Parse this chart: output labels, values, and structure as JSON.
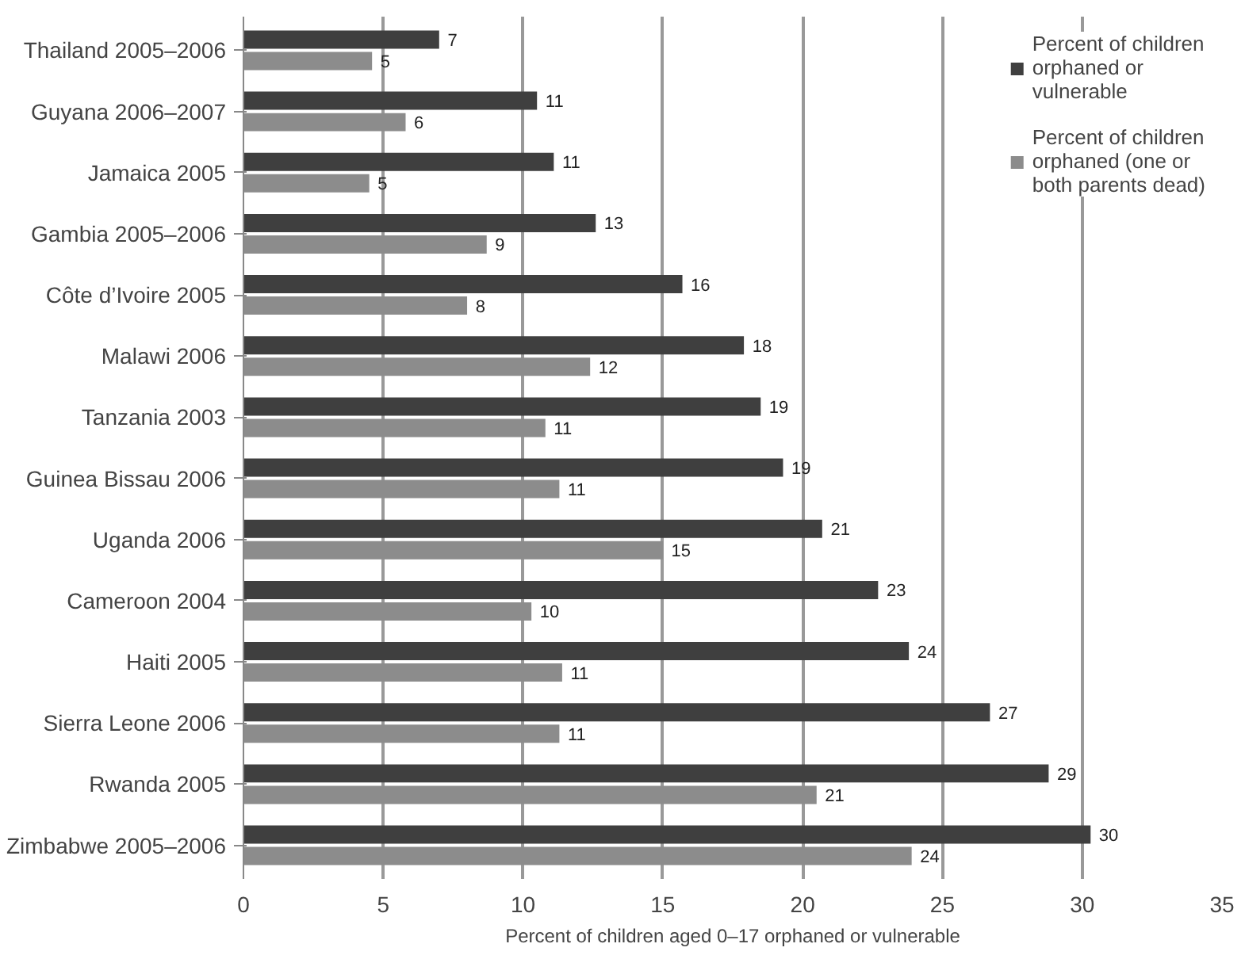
{
  "chart_data": {
    "type": "bar",
    "orientation": "horizontal",
    "xlabel": "Percent of children aged 0–17 orphaned or vulnerable",
    "categories": [
      "Thailand 2005–2006",
      "Guyana 2006–2007",
      "Jamaica 2005",
      "Gambia 2005–2006",
      "Côte d’Ivoire 2005",
      "Malawi 2006",
      "Tanzania 2003",
      "Guinea Bissau 2006",
      "Uganda 2006",
      "Cameroon 2004",
      "Haiti 2005",
      "Sierra Leone 2006",
      "Rwanda 2005",
      "Zimbabwe 2005–2006"
    ],
    "series": [
      {
        "name": "Percent of children orphaned or vulnerable",
        "color": "#3f3f3f",
        "values": [
          7.0,
          10.5,
          11.1,
          12.6,
          15.7,
          17.9,
          18.5,
          19.3,
          20.7,
          22.7,
          23.8,
          26.7,
          28.8,
          30.3
        ],
        "value_labels": [
          "7",
          "11",
          "11",
          "13",
          "16",
          "18",
          "19",
          "19",
          "21",
          "23",
          "24",
          "27",
          "29",
          "30"
        ]
      },
      {
        "name": "Percent of children orphaned (one or both parents dead)",
        "color": "#8c8c8c",
        "values": [
          4.6,
          5.8,
          4.5,
          8.7,
          8.0,
          12.4,
          10.8,
          11.3,
          15.0,
          10.3,
          11.4,
          11.3,
          20.5,
          23.9
        ],
        "value_labels": [
          "5",
          "6",
          "5",
          "9",
          "8",
          "12",
          "11",
          "11",
          "15",
          "10",
          "11",
          "11",
          "21",
          "24"
        ]
      }
    ],
    "xlim": [
      0,
      35
    ],
    "xticks": [
      0,
      5,
      10,
      15,
      20,
      25,
      30,
      35
    ],
    "grid": "x",
    "legend": "top right"
  }
}
